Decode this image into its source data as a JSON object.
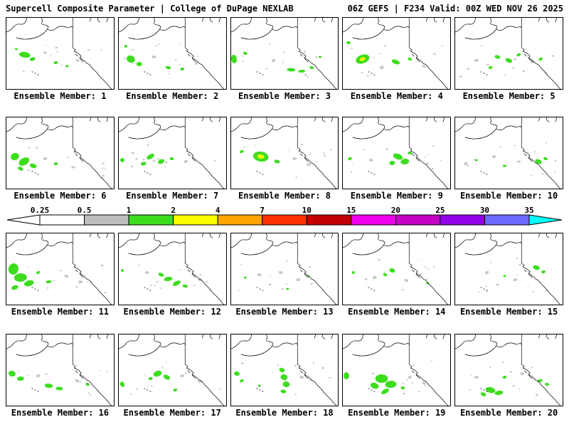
{
  "header": {
    "left": "Supercell Composite Parameter | College of DuPage NEXLAB",
    "right": "06Z GEFS | F234 Valid: 00Z WED NOV 26 2025"
  },
  "colorbar": {
    "ticks": [
      "0.25",
      "0.5",
      "1",
      "2",
      "4",
      "7",
      "10",
      "15",
      "20",
      "25",
      "30",
      "35"
    ],
    "segment_colors": [
      "#ffffff",
      "#bdbdbd",
      "#3ddd1e",
      "#fdfd00",
      "#ffa500",
      "#fd3000",
      "#c00000",
      "#ee00ee",
      "#c400c4",
      "#9100e8",
      "#6a6aff"
    ],
    "left_arrow_color": "#ffffff",
    "right_arrow_color": "#00ffff",
    "outline_color": "#000000"
  },
  "blob_colors": {
    "g": "#3ddd1e",
    "y": "#f8f800",
    "r": "#c8c8c8"
  },
  "members": [
    {
      "label": "Ensemble Member: 1",
      "blobs": [
        [
          26,
          52,
          8,
          4,
          "g"
        ],
        [
          37,
          58,
          4,
          2.5,
          "g"
        ],
        [
          70,
          63,
          3,
          2,
          "g"
        ],
        [
          86,
          68,
          2.5,
          1.5,
          "g"
        ],
        [
          55,
          49,
          2.5,
          1.5,
          "r"
        ],
        [
          101,
          60,
          3,
          1.5,
          "r"
        ],
        [
          14,
          44,
          2,
          1.5,
          "g"
        ]
      ]
    },
    {
      "label": "Ensemble Member: 2",
      "blobs": [
        [
          17,
          58,
          6,
          5,
          "g"
        ],
        [
          29,
          65,
          4,
          3,
          "g"
        ],
        [
          70,
          70,
          4,
          2,
          "g"
        ],
        [
          90,
          72,
          3,
          2,
          "g"
        ],
        [
          50,
          55,
          3,
          2,
          "r"
        ],
        [
          110,
          64,
          3,
          1.5,
          "r"
        ],
        [
          10,
          40,
          2,
          2,
          "g"
        ]
      ]
    },
    {
      "label": "Ensemble Member: 3",
      "blobs": [
        [
          4,
          58,
          4,
          6,
          "g"
        ],
        [
          20,
          50,
          3,
          2,
          "g"
        ],
        [
          85,
          73,
          6,
          2.5,
          "g"
        ],
        [
          100,
          75,
          5,
          2,
          "g"
        ],
        [
          114,
          70,
          3,
          2,
          "g"
        ],
        [
          60,
          60,
          3,
          2,
          "r"
        ],
        [
          126,
          55,
          2,
          1.5,
          "g"
        ]
      ]
    },
    {
      "label": "Ensemble Member: 4",
      "blobs": [
        [
          28,
          58,
          10,
          6,
          "g"
        ],
        [
          28,
          58,
          4,
          2.5,
          "y"
        ],
        [
          75,
          62,
          6,
          3,
          "g"
        ],
        [
          95,
          58,
          3,
          2,
          "g"
        ],
        [
          55,
          70,
          3,
          2,
          "r"
        ],
        [
          115,
          68,
          3,
          1.5,
          "r"
        ],
        [
          8,
          35,
          3,
          2,
          "g"
        ]
      ]
    },
    {
      "label": "Ensemble Member: 5",
      "blobs": [
        [
          60,
          55,
          4,
          2.5,
          "g"
        ],
        [
          76,
          60,
          5,
          3,
          "g"
        ],
        [
          90,
          52,
          3,
          2,
          "g"
        ],
        [
          50,
          70,
          3,
          2,
          "g"
        ],
        [
          30,
          60,
          3,
          2,
          "r"
        ],
        [
          110,
          62,
          3,
          2,
          "r"
        ],
        [
          121,
          58,
          3,
          2,
          "g"
        ]
      ]
    },
    {
      "label": "Ensemble Member: 6",
      "blobs": [
        [
          12,
          55,
          6,
          5,
          "g"
        ],
        [
          25,
          62,
          8,
          5,
          "g"
        ],
        [
          38,
          68,
          5,
          3,
          "g"
        ],
        [
          20,
          72,
          4,
          2.5,
          "g"
        ],
        [
          70,
          65,
          3,
          2,
          "g"
        ],
        [
          55,
          58,
          3,
          2,
          "r"
        ],
        [
          95,
          70,
          3,
          1.5,
          "r"
        ]
      ]
    },
    {
      "label": "Ensemble Member: 7",
      "blobs": [
        [
          45,
          55,
          6,
          3,
          "g"
        ],
        [
          60,
          62,
          5,
          3,
          "g"
        ],
        [
          35,
          65,
          4,
          2.5,
          "g"
        ],
        [
          75,
          58,
          3,
          2,
          "g"
        ],
        [
          95,
          62,
          3,
          2,
          "r"
        ],
        [
          20,
          50,
          2,
          1.5,
          "r"
        ],
        [
          5,
          60,
          3,
          3,
          "g"
        ]
      ]
    },
    {
      "label": "Ensemble Member: 8",
      "blobs": [
        [
          42,
          55,
          11,
          7,
          "g"
        ],
        [
          42,
          55,
          5,
          3,
          "y"
        ],
        [
          65,
          62,
          4,
          2.5,
          "g"
        ],
        [
          90,
          58,
          3,
          2,
          "r"
        ],
        [
          110,
          66,
          3,
          2,
          "r"
        ],
        [
          15,
          48,
          3,
          2,
          "g"
        ]
      ]
    },
    {
      "label": "Ensemble Member: 9",
      "blobs": [
        [
          78,
          55,
          7,
          4,
          "g"
        ],
        [
          88,
          62,
          6,
          4,
          "g"
        ],
        [
          70,
          64,
          4,
          3,
          "g"
        ],
        [
          95,
          50,
          3,
          2,
          "g"
        ],
        [
          40,
          60,
          3,
          2,
          "r"
        ],
        [
          120,
          65,
          2,
          1.5,
          "r"
        ],
        [
          10,
          58,
          3,
          2,
          "g"
        ]
      ]
    },
    {
      "label": "Ensemble Member: 10",
      "blobs": [
        [
          118,
          62,
          5,
          3,
          "g"
        ],
        [
          128,
          58,
          3,
          2,
          "g"
        ],
        [
          70,
          68,
          3,
          1.5,
          "g"
        ],
        [
          30,
          60,
          2,
          1.5,
          "g"
        ],
        [
          55,
          55,
          3,
          2,
          "r"
        ],
        [
          90,
          62,
          3,
          1.5,
          "r"
        ],
        [
          15,
          65,
          3,
          2,
          "r"
        ]
      ]
    },
    {
      "label": "Ensemble Member: 11",
      "blobs": [
        [
          10,
          50,
          7,
          8,
          "g"
        ],
        [
          20,
          62,
          9,
          6,
          "g"
        ],
        [
          32,
          70,
          7,
          4,
          "g"
        ],
        [
          12,
          76,
          5,
          3,
          "g"
        ],
        [
          60,
          68,
          4,
          2,
          "g"
        ],
        [
          85,
          60,
          3,
          2,
          "r"
        ],
        [
          105,
          68,
          3,
          2,
          "r"
        ],
        [
          45,
          55,
          3,
          2,
          "g"
        ]
      ]
    },
    {
      "label": "Ensemble Member: 12",
      "blobs": [
        [
          60,
          58,
          4,
          2.5,
          "g"
        ],
        [
          70,
          64,
          6,
          3,
          "g"
        ],
        [
          82,
          70,
          6,
          3,
          "g"
        ],
        [
          94,
          74,
          4,
          2,
          "g"
        ],
        [
          40,
          55,
          3,
          2,
          "r"
        ],
        [
          115,
          65,
          3,
          2,
          "r"
        ],
        [
          5,
          52,
          2,
          2,
          "g"
        ]
      ]
    },
    {
      "label": "Ensemble Member: 13",
      "blobs": [
        [
          40,
          58,
          3,
          2,
          "r"
        ],
        [
          70,
          55,
          3,
          2,
          "r"
        ],
        [
          95,
          65,
          3,
          2,
          "r"
        ],
        [
          55,
          72,
          2,
          1.5,
          "r"
        ],
        [
          80,
          78,
          2,
          1.5,
          "g"
        ],
        [
          110,
          60,
          2,
          1,
          "g"
        ],
        [
          20,
          62,
          2,
          1.5,
          "g"
        ]
      ]
    },
    {
      "label": "Ensemble Member: 14",
      "blobs": [
        [
          70,
          52,
          4,
          3,
          "g"
        ],
        [
          60,
          58,
          3,
          2,
          "g"
        ],
        [
          45,
          62,
          3,
          2,
          "r"
        ],
        [
          90,
          66,
          3,
          2,
          "r"
        ],
        [
          110,
          58,
          2,
          1.5,
          "r"
        ],
        [
          120,
          70,
          2,
          1.5,
          "g"
        ],
        [
          15,
          55,
          2,
          2,
          "g"
        ]
      ]
    },
    {
      "label": "Ensemble Member: 15",
      "blobs": [
        [
          115,
          48,
          5,
          3,
          "g"
        ],
        [
          125,
          54,
          3,
          2,
          "g"
        ],
        [
          70,
          60,
          2,
          1.5,
          "g"
        ],
        [
          45,
          55,
          3,
          2,
          "r"
        ],
        [
          85,
          65,
          3,
          2,
          "r"
        ],
        [
          60,
          72,
          2,
          1.5,
          "r"
        ]
      ]
    },
    {
      "label": "Ensemble Member: 16",
      "blobs": [
        [
          8,
          55,
          5,
          4,
          "g"
        ],
        [
          20,
          62,
          5,
          3,
          "g"
        ],
        [
          60,
          72,
          6,
          3,
          "g"
        ],
        [
          75,
          76,
          5,
          2.5,
          "g"
        ],
        [
          45,
          58,
          3,
          2,
          "r"
        ],
        [
          100,
          65,
          3,
          2,
          "r"
        ],
        [
          115,
          70,
          3,
          2,
          "g"
        ]
      ]
    },
    {
      "label": "Ensemble Member: 17",
      "blobs": [
        [
          55,
          55,
          6,
          4,
          "g"
        ],
        [
          68,
          60,
          5,
          3,
          "g"
        ],
        [
          45,
          62,
          3,
          2,
          "g"
        ],
        [
          5,
          70,
          3,
          4,
          "g"
        ],
        [
          90,
          58,
          3,
          2,
          "r"
        ],
        [
          115,
          66,
          3,
          2,
          "r"
        ],
        [
          80,
          78,
          3,
          2,
          "g"
        ]
      ]
    },
    {
      "label": "Ensemble Member: 18",
      "blobs": [
        [
          72,
          50,
          4,
          3,
          "g"
        ],
        [
          75,
          60,
          5,
          4,
          "g"
        ],
        [
          78,
          70,
          5,
          4,
          "g"
        ],
        [
          74,
          80,
          4,
          2.5,
          "g"
        ],
        [
          8,
          55,
          4,
          3,
          "g"
        ],
        [
          15,
          65,
          3,
          2,
          "g"
        ],
        [
          100,
          60,
          3,
          2,
          "r"
        ],
        [
          40,
          72,
          2,
          1.5,
          "g"
        ]
      ]
    },
    {
      "label": "Ensemble Member: 19",
      "blobs": [
        [
          55,
          62,
          9,
          6,
          "g"
        ],
        [
          68,
          70,
          8,
          5,
          "g"
        ],
        [
          45,
          72,
          6,
          4,
          "g"
        ],
        [
          60,
          80,
          6,
          3,
          "g"
        ],
        [
          5,
          58,
          4,
          5,
          "g"
        ],
        [
          95,
          60,
          3,
          2,
          "r"
        ],
        [
          115,
          68,
          3,
          2,
          "r"
        ],
        [
          85,
          75,
          3,
          2,
          "g"
        ]
      ]
    },
    {
      "label": "Ensemble Member: 20",
      "blobs": [
        [
          50,
          78,
          7,
          4,
          "g"
        ],
        [
          62,
          82,
          6,
          3,
          "g"
        ],
        [
          40,
          84,
          4,
          2.5,
          "g"
        ],
        [
          70,
          60,
          3,
          2,
          "g"
        ],
        [
          120,
          65,
          4,
          2,
          "g"
        ],
        [
          130,
          70,
          3,
          2,
          "g"
        ],
        [
          30,
          60,
          3,
          2,
          "r"
        ],
        [
          95,
          55,
          3,
          2,
          "r"
        ]
      ]
    }
  ]
}
